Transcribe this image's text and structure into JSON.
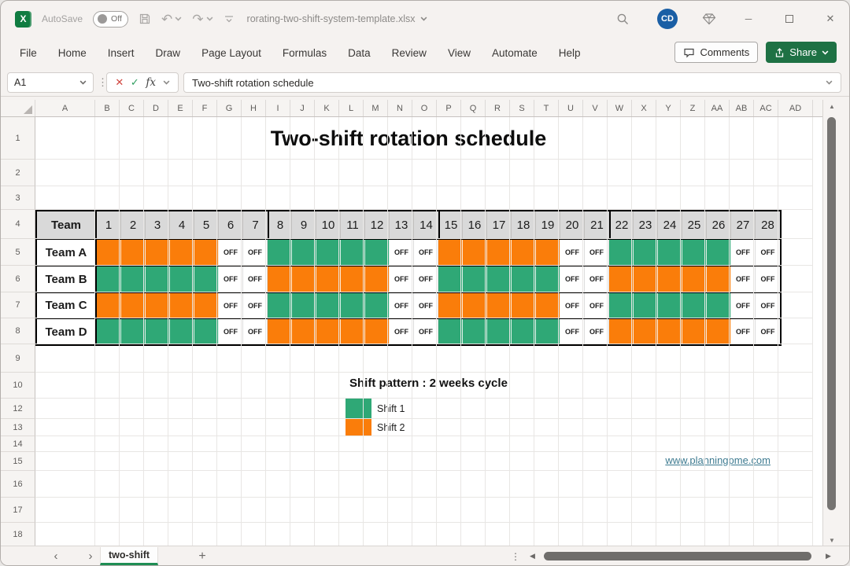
{
  "window": {
    "titlebar": {
      "autosave_label": "AutoSave",
      "autosave_state": "Off",
      "filename": "rorating-two-shift-system-template.xlsx",
      "avatar": "CD"
    }
  },
  "ribbon": {
    "tabs": [
      "File",
      "Home",
      "Insert",
      "Draw",
      "Page Layout",
      "Formulas",
      "Data",
      "Review",
      "View",
      "Automate",
      "Help"
    ],
    "comments_label": "Comments",
    "share_label": "Share"
  },
  "formula_bar": {
    "name_box": "A1",
    "cancel_glyph": "✕",
    "confirm_glyph": "✓",
    "fx_label": "fx",
    "value": "Two-shift rotation schedule"
  },
  "grid": {
    "columns": [
      "A",
      "B",
      "C",
      "D",
      "E",
      "F",
      "G",
      "H",
      "I",
      "J",
      "K",
      "L",
      "M",
      "N",
      "O",
      "P",
      "Q",
      "R",
      "S",
      "T",
      "U",
      "V",
      "W",
      "X",
      "Y",
      "Z",
      "AA",
      "AB",
      "AC",
      "AD"
    ],
    "rows": [
      "1",
      "2",
      "3",
      "4",
      "5",
      "6",
      "7",
      "8",
      "9",
      "10",
      "12",
      "13",
      "14",
      "15",
      "16",
      "17",
      "18"
    ]
  },
  "content": {
    "title": "Two-shift rotation schedule",
    "legend_title": "Shift pattern : 2 weeks cycle",
    "legend": [
      {
        "label": "Shift 1",
        "value": "1"
      },
      {
        "label": "Shift 2",
        "value": "2"
      }
    ],
    "link": "www.planningpme.com"
  },
  "chart_data": {
    "type": "table",
    "title": "Two-shift rotation schedule",
    "corner_header": "Team",
    "day_headers": [
      "1",
      "2",
      "3",
      "4",
      "5",
      "6",
      "7",
      "8",
      "9",
      "10",
      "11",
      "12",
      "13",
      "14",
      "15",
      "16",
      "17",
      "18",
      "19",
      "20",
      "21",
      "22",
      "23",
      "24",
      "25",
      "26",
      "27",
      "28"
    ],
    "cycle_note": "Shift pattern : 2 weeks cycle",
    "value_meanings": {
      "1": "Shift 1",
      "2": "Shift 2",
      "OFF": "Day off"
    },
    "teams": [
      {
        "name": "Team A",
        "days": [
          "2",
          "2",
          "2",
          "2",
          "2",
          "OFF",
          "OFF",
          "1",
          "1",
          "1",
          "1",
          "1",
          "OFF",
          "OFF",
          "2",
          "2",
          "2",
          "2",
          "2",
          "OFF",
          "OFF",
          "1",
          "1",
          "1",
          "1",
          "1",
          "OFF",
          "OFF"
        ]
      },
      {
        "name": "Team B",
        "days": [
          "1",
          "1",
          "1",
          "1",
          "1",
          "OFF",
          "OFF",
          "2",
          "2",
          "2",
          "2",
          "2",
          "OFF",
          "OFF",
          "1",
          "1",
          "1",
          "1",
          "1",
          "OFF",
          "OFF",
          "2",
          "2",
          "2",
          "2",
          "2",
          "OFF",
          "OFF"
        ]
      },
      {
        "name": "Team C",
        "days": [
          "2",
          "2",
          "2",
          "2",
          "2",
          "OFF",
          "OFF",
          "1",
          "1",
          "1",
          "1",
          "1",
          "OFF",
          "OFF",
          "2",
          "2",
          "2",
          "2",
          "2",
          "OFF",
          "OFF",
          "1",
          "1",
          "1",
          "1",
          "1",
          "OFF",
          "OFF"
        ]
      },
      {
        "name": "Team D",
        "days": [
          "1",
          "1",
          "1",
          "1",
          "1",
          "OFF",
          "OFF",
          "2",
          "2",
          "2",
          "2",
          "2",
          "OFF",
          "OFF",
          "1",
          "1",
          "1",
          "1",
          "1",
          "OFF",
          "OFF",
          "2",
          "2",
          "2",
          "2",
          "2",
          "OFF",
          "OFF"
        ]
      }
    ]
  },
  "sheet_tabs": {
    "active": "two-shift"
  },
  "icons": {
    "excel_x": "X",
    "undo": "↶",
    "redo": "↷",
    "dots_v": "⋮",
    "minimize": "─",
    "close": "✕",
    "nav_left": "‹",
    "nav_right": "›",
    "plus": "+",
    "scroll_up": "▲",
    "scroll_down": "▼",
    "scroll_left": "◀",
    "scroll_right": "▶"
  },
  "colors": {
    "shift1_green": "#2FA876",
    "shift2_orange": "#FA7D0A",
    "table_header_gray": "#D9D9D9",
    "share_green": "#1E7144",
    "tab_underline_green": "#1E8E54",
    "link_teal": "#3E7B91",
    "avatar_blue": "#1A5FA5",
    "excel_green": "#107C41"
  }
}
